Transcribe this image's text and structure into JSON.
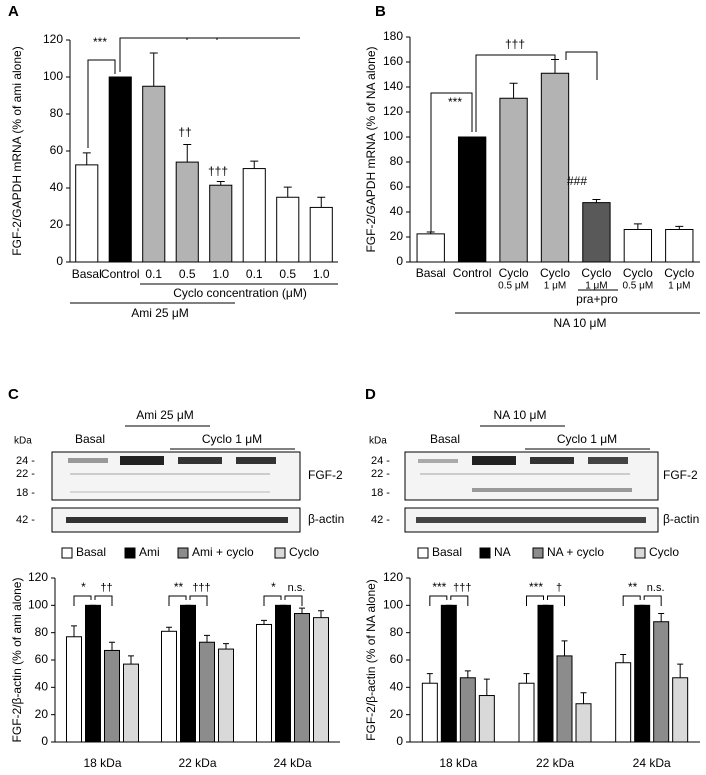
{
  "chart_data": [
    {
      "type": "bar",
      "panel": "A",
      "ylabel": "FGF-2/GAPDH mRNA (% of ami alone)",
      "categories": [
        "Basal",
        "Control",
        "0.1",
        "0.5",
        "1.0",
        "0.1",
        "0.5",
        "1.0"
      ],
      "values": [
        52.5,
        100,
        95,
        54,
        41.5,
        50.5,
        35,
        29.5
      ],
      "errors": [
        6.5,
        0,
        18,
        9.5,
        2,
        4,
        5.5,
        5.5
      ],
      "colors": [
        "#ffffff",
        "#000000",
        "#b3b3b3",
        "#b3b3b3",
        "#b3b3b3",
        "#ffffff",
        "#ffffff",
        "#ffffff"
      ],
      "ylim": [
        0,
        120
      ],
      "yticks": [
        0,
        20,
        40,
        60,
        80,
        100,
        120
      ],
      "annotations": [
        "***",
        "††",
        "†††"
      ],
      "group_labels": [
        "Cyclo concentration (μM)",
        "Ami 25 μM"
      ]
    },
    {
      "type": "bar",
      "panel": "B",
      "ylabel": "FGF-2/GAPDH mRNA (% of NA alone)",
      "categories": [
        [
          "Basal"
        ],
        [
          "Control"
        ],
        [
          "Cyclo",
          "0.5 μM"
        ],
        [
          "Cyclo",
          "1 μM"
        ],
        [
          "Cyclo",
          "1 μM"
        ],
        [
          "Cyclo",
          "0.5 μM"
        ],
        [
          "Cyclo",
          "1 μM"
        ]
      ],
      "values": [
        22.5,
        100,
        131,
        151,
        47.5,
        26,
        26
      ],
      "errors": [
        1.5,
        0,
        12,
        11,
        2.5,
        4.5,
        2.5
      ],
      "colors": [
        "#ffffff",
        "#000000",
        "#b3b3b3",
        "#b3b3b3",
        "#595959",
        "#ffffff",
        "#ffffff"
      ],
      "ylim": [
        0,
        180
      ],
      "yticks": [
        0,
        20,
        40,
        60,
        80,
        100,
        120,
        140,
        160,
        180
      ],
      "annotations": [
        "***",
        "†††",
        "###"
      ],
      "group_labels": [
        "pra+pro",
        "NA 10 μM"
      ]
    },
    {
      "type": "grouped_bar",
      "panel": "C",
      "ylabel": "FGF-2/β-actin (% of ami alone)",
      "blot": {
        "header": [
          "Ami 25 μM",
          "Cyclo 1 μM",
          "Basal"
        ],
        "kda_title": "kDa",
        "kda": [
          "24 -",
          "22 -",
          "18 -",
          "42 -"
        ],
        "bands": [
          "FGF-2",
          "β-actin"
        ]
      },
      "categories": [
        "18 kDa",
        "22 kDa",
        "24 kDa"
      ],
      "series": [
        {
          "name": "Basal",
          "color": "#ffffff",
          "values": [
            77,
            81,
            86
          ],
          "errors": [
            8,
            3,
            3
          ]
        },
        {
          "name": "Ami",
          "color": "#000000",
          "values": [
            100,
            100,
            100
          ],
          "errors": [
            0,
            0,
            0
          ]
        },
        {
          "name": "Ami + cyclo",
          "color": "#8c8c8c",
          "values": [
            67,
            73,
            94
          ],
          "errors": [
            6,
            5,
            4
          ]
        },
        {
          "name": "Cyclo",
          "color": "#d9d9d9",
          "values": [
            57,
            68,
            91
          ],
          "errors": [
            6,
            4,
            5
          ]
        }
      ],
      "ylim": [
        0,
        120
      ],
      "yticks": [
        0,
        20,
        40,
        60,
        80,
        100,
        120
      ],
      "annotations": [
        "*",
        "††",
        "**",
        "†††",
        "*",
        "n.s."
      ]
    },
    {
      "type": "grouped_bar",
      "panel": "D",
      "ylabel": "FGF-2/β-actin (% of NA alone)",
      "blot": {
        "header": [
          "NA 10 μM",
          "Cyclo 1 μM",
          "Basal"
        ],
        "kda_title": "kDa",
        "kda": [
          "24 -",
          "22 -",
          "18 -",
          "42 -"
        ],
        "bands": [
          "FGF-2",
          "β-actin"
        ]
      },
      "categories": [
        "18 kDa",
        "22 kDa",
        "24 kDa"
      ],
      "series": [
        {
          "name": "Basal",
          "color": "#ffffff",
          "values": [
            43,
            43,
            58
          ],
          "errors": [
            7,
            7,
            6
          ]
        },
        {
          "name": "NA",
          "color": "#000000",
          "values": [
            100,
            100,
            100
          ],
          "errors": [
            0,
            0,
            0
          ]
        },
        {
          "name": "NA + cyclo",
          "color": "#8c8c8c",
          "values": [
            47,
            63,
            88
          ],
          "errors": [
            5,
            11,
            6
          ]
        },
        {
          "name": "Cyclo",
          "color": "#d9d9d9",
          "values": [
            34,
            28,
            47
          ],
          "errors": [
            12,
            8,
            10
          ]
        }
      ],
      "ylim": [
        0,
        120
      ],
      "yticks": [
        0,
        20,
        40,
        60,
        80,
        100,
        120
      ],
      "annotations": [
        "***",
        "†††",
        "***",
        "†",
        "**",
        "n.s."
      ]
    }
  ]
}
